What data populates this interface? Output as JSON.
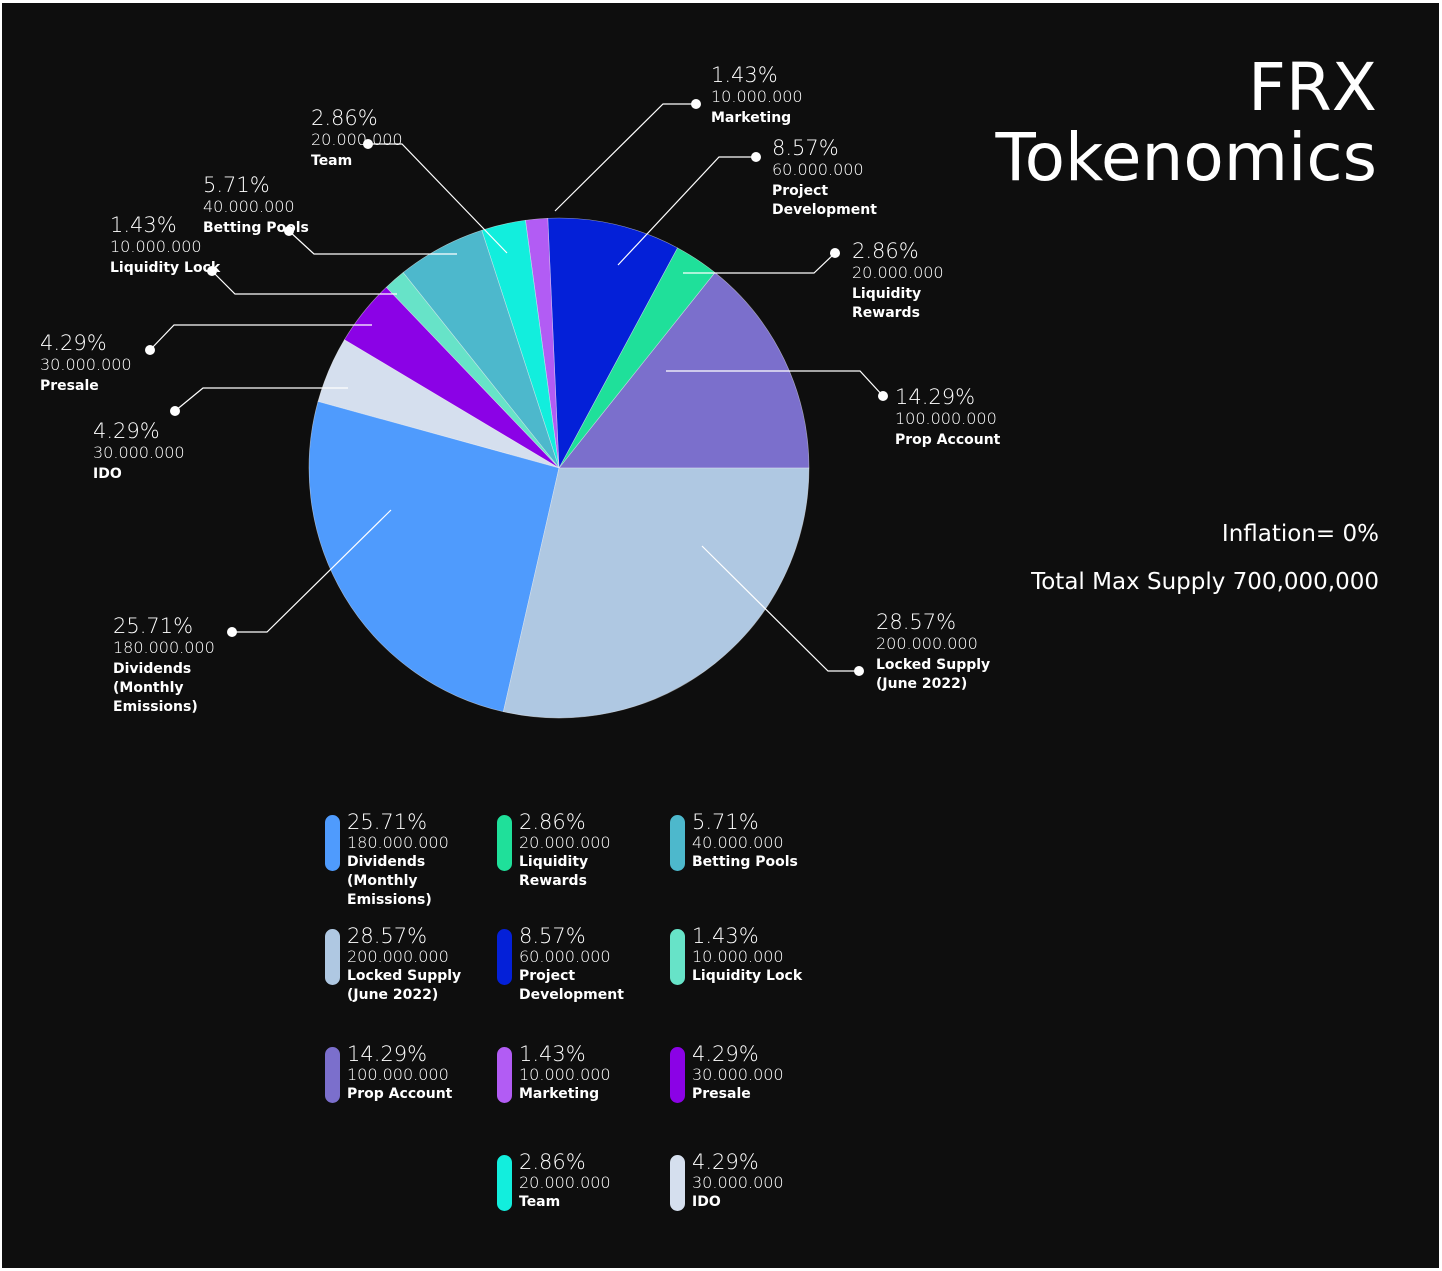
{
  "title": {
    "line1": "FRX",
    "line2": "Tokenomics"
  },
  "info": {
    "inflation": "Inflation= 0%",
    "max_supply": "Total Max Supply 700,000,000"
  },
  "chart_data": {
    "type": "pie",
    "start_angle_deg": 0,
    "direction": "counterclockwise-from-east-in-order",
    "slices": [
      {
        "name": "Prop Account",
        "value": 100000000,
        "percent": "14.29%",
        "amount": "100.000.000",
        "label_lines": [
          "Prop Account"
        ],
        "color": "#7b6fcc"
      },
      {
        "name": "Liquidity Rewards",
        "value": 20000000,
        "percent": "2.86%",
        "amount": "20.000.000",
        "label_lines": [
          "Liquidity",
          "Rewards"
        ],
        "color": "#1fe09a"
      },
      {
        "name": "Project Development",
        "value": 60000000,
        "percent": "8.57%",
        "amount": "60.000.000",
        "label_lines": [
          "Project",
          "Development"
        ],
        "color": "#0420d8"
      },
      {
        "name": "Marketing",
        "value": 10000000,
        "percent": "1.43%",
        "amount": "10.000.000",
        "label_lines": [
          "Marketing"
        ],
        "color": "#b25cf4"
      },
      {
        "name": "Team",
        "value": 20000000,
        "percent": "2.86%",
        "amount": "20.000.000",
        "label_lines": [
          "Team"
        ],
        "color": "#12eedd"
      },
      {
        "name": "Betting Pools",
        "value": 40000000,
        "percent": "5.71%",
        "amount": "40.000.000",
        "label_lines": [
          "Betting Pools"
        ],
        "color": "#4db8cc"
      },
      {
        "name": "Liquidity Lock",
        "value": 10000000,
        "percent": "1.43%",
        "amount": "10.000.000",
        "label_lines": [
          "Liquidity Lock"
        ],
        "color": "#67e3c8"
      },
      {
        "name": "Presale",
        "value": 30000000,
        "percent": "4.29%",
        "amount": "30.000.000",
        "label_lines": [
          "Presale"
        ],
        "color": "#8b02e6"
      },
      {
        "name": "IDO",
        "value": 30000000,
        "percent": "4.29%",
        "amount": "30.000.000",
        "label_lines": [
          "IDO"
        ],
        "color": "#d5dfee"
      },
      {
        "name": "Dividends (Monthly Emissions)",
        "value": 180000000,
        "percent": "25.71%",
        "amount": "180.000.000",
        "label_lines": [
          "Dividends",
          "(Monthly",
          "Emissions)"
        ],
        "color": "#4f9bfd"
      },
      {
        "name": "Locked Supply (June 2022)",
        "value": 200000000,
        "percent": "28.57%",
        "amount": "200.000.000",
        "label_lines": [
          "Locked Supply",
          "(June 2022)"
        ],
        "color": "#afc8e2"
      }
    ],
    "legend": {
      "placement": "bottom",
      "order": [
        "Dividends (Monthly Emissions)",
        "Liquidity Rewards",
        "Betting Pools",
        "Locked Supply (June 2022)",
        "Project Development",
        "Liquidity Lock",
        "Prop Account",
        "Marketing",
        "Presale",
        "Team",
        "IDO"
      ]
    }
  }
}
